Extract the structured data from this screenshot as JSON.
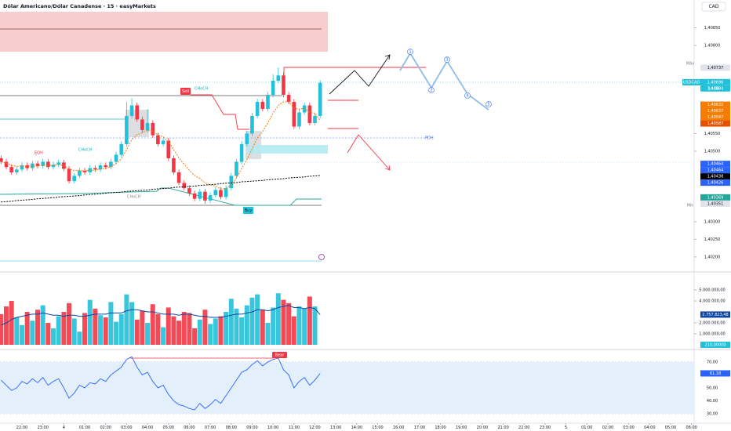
{
  "chart_data": [
    {
      "type": "candlestick",
      "title": "Dólar Americano/Dólar Canadense · 15 · easyMarkets",
      "currency": "CAD",
      "up_color": "#22c0d9",
      "down_color": "#f23645",
      "open": [
        1.4048,
        1.4047,
        1.40455,
        1.4044,
        1.40448,
        1.4046,
        1.40452,
        1.40465,
        1.40458,
        1.4047,
        1.40455,
        1.40462,
        1.40468,
        1.4045,
        1.40415,
        1.4043,
        1.40445,
        1.4044,
        1.40452,
        1.40448,
        1.4046,
        1.40455,
        1.4047,
        1.4049,
        1.4052,
        1.406,
        1.4063,
        1.4059,
        1.4056,
        1.4058,
        1.40545,
        1.4052,
        1.4053,
        1.4048,
        1.4044,
        1.4041,
        1.40395,
        1.4038,
        1.40365,
        1.40385,
        1.4036,
        1.40375,
        1.4039,
        1.4037,
        1.40395,
        1.4043,
        1.4047,
        1.4052,
        1.4055,
        1.406,
        1.4064,
        1.4062,
        1.4066,
        1.407,
        1.40715,
        1.4066,
        1.4064,
        1.4057,
        1.4061,
        1.4063,
        1.4058,
        1.406
      ],
      "high": [
        1.40488,
        1.40478,
        1.40463,
        1.40456,
        1.40468,
        1.40468,
        1.40473,
        1.40473,
        1.40478,
        1.40478,
        1.4047,
        1.40476,
        1.40476,
        1.40458,
        1.40438,
        1.40453,
        1.40453,
        1.4046,
        1.4046,
        1.40468,
        1.40468,
        1.40478,
        1.40498,
        1.40528,
        1.4064,
        1.4065,
        1.40638,
        1.40598,
        1.4062,
        1.40588,
        1.40553,
        1.40538,
        1.40538,
        1.40488,
        1.40448,
        1.40418,
        1.40403,
        1.40388,
        1.40393,
        1.40393,
        1.40383,
        1.40398,
        1.40398,
        1.40403,
        1.40438,
        1.40478,
        1.40528,
        1.40558,
        1.40608,
        1.40648,
        1.40648,
        1.40668,
        1.40718,
        1.40737,
        1.40723,
        1.40668,
        1.40648,
        1.40618,
        1.40638,
        1.40638,
        1.40608,
        1.40702
      ],
      "low": [
        1.40463,
        1.40448,
        1.40433,
        1.40433,
        1.40441,
        1.40445,
        1.40445,
        1.40451,
        1.40451,
        1.40448,
        1.40448,
        1.40455,
        1.40443,
        1.40408,
        1.40408,
        1.40423,
        1.40433,
        1.40433,
        1.40441,
        1.40441,
        1.40448,
        1.40448,
        1.40463,
        1.40483,
        1.40513,
        1.40593,
        1.40583,
        1.40553,
        1.40553,
        1.40538,
        1.40513,
        1.40513,
        1.40473,
        1.40433,
        1.40403,
        1.40388,
        1.40373,
        1.40358,
        1.40358,
        1.40351,
        1.40353,
        1.40368,
        1.40363,
        1.40363,
        1.40388,
        1.40423,
        1.40463,
        1.40513,
        1.40543,
        1.40593,
        1.40613,
        1.40613,
        1.40653,
        1.40693,
        1.40653,
        1.40633,
        1.40563,
        1.40563,
        1.40603,
        1.40573,
        1.40573,
        1.40593
      ],
      "close": [
        1.4047,
        1.40455,
        1.4044,
        1.40448,
        1.4046,
        1.40452,
        1.40465,
        1.40458,
        1.4047,
        1.40455,
        1.40462,
        1.40468,
        1.4045,
        1.40415,
        1.4043,
        1.40445,
        1.4044,
        1.40452,
        1.40448,
        1.4046,
        1.40455,
        1.4047,
        1.4049,
        1.4052,
        1.406,
        1.4063,
        1.4059,
        1.4056,
        1.4058,
        1.40545,
        1.4052,
        1.4053,
        1.4048,
        1.4044,
        1.4041,
        1.40395,
        1.4038,
        1.40365,
        1.40385,
        1.4036,
        1.40375,
        1.4039,
        1.4037,
        1.40395,
        1.4043,
        1.4047,
        1.4052,
        1.4055,
        1.406,
        1.4064,
        1.4062,
        1.4066,
        1.407,
        1.40715,
        1.4066,
        1.4064,
        1.4057,
        1.4061,
        1.4063,
        1.4058,
        1.406,
        1.40694
      ],
      "overlays": [
        {
          "color": "#f57c00",
          "dash": true,
          "values": [
            1.4047,
            1.40466,
            1.4046,
            1.40457,
            1.40458,
            1.40456,
            1.40458,
            1.40458,
            1.40461,
            1.40459,
            1.4046,
            1.40462,
            1.40459,
            1.4045,
            1.40445,
            1.40445,
            1.40444,
            1.40446,
            1.40446,
            1.4045,
            1.40451,
            1.40456,
            1.40465,
            1.40478,
            1.40505,
            1.40533,
            1.40547,
            1.40552,
            1.4056,
            1.40556,
            1.40546,
            1.40541,
            1.40527,
            1.40504,
            1.40481,
            1.40463,
            1.40446,
            1.40431,
            1.40423,
            1.4041,
            1.40404,
            1.40401,
            1.40393,
            1.40394,
            1.40404,
            1.40424,
            1.40451,
            1.40476,
            1.40506,
            1.40538,
            1.40556,
            1.4058,
            1.40608,
            1.4063,
            1.4064,
            1.4064,
            1.40622,
            1.40619,
            1.40622,
            1.4061,
            1.40608,
            1.40587
          ]
        },
        {
          "color": "#000000",
          "dash": true,
          "values": [
            1.40356,
            1.40357,
            1.40358,
            1.4036,
            1.40361,
            1.40362,
            1.40363,
            1.40365,
            1.40366,
            1.40367,
            1.40368,
            1.4037,
            1.40371,
            1.40372,
            1.40373,
            1.40374,
            1.40376,
            1.40377,
            1.40378,
            1.40379,
            1.40381,
            1.40382,
            1.40383,
            1.40384,
            1.40386,
            1.40387,
            1.40388,
            1.40389,
            1.4039,
            1.40392,
            1.40393,
            1.40394,
            1.40395,
            1.40397,
            1.40398,
            1.40399,
            1.404,
            1.40401,
            1.40403,
            1.40404,
            1.40405,
            1.40406,
            1.40408,
            1.40409,
            1.4041,
            1.40411,
            1.40413,
            1.40414,
            1.40415,
            1.40416,
            1.40417,
            1.40419,
            1.4042,
            1.40421,
            1.40422,
            1.40424,
            1.40425,
            1.40426,
            1.40427,
            1.40429,
            1.4043,
            1.40431
          ]
        }
      ],
      "ylim": [
        1.40173,
        1.40929
      ],
      "yticks": [
        {
          "value": 1.4085,
          "label": "1,40850"
        },
        {
          "value": 1.408,
          "label": "1,40800"
        },
        {
          "value": 1.4055,
          "label": "1,40550"
        },
        {
          "value": 1.405,
          "label": "1,40500"
        },
        {
          "value": 1.403,
          "label": "1,40300"
        },
        {
          "value": 1.4025,
          "label": "1,40250"
        },
        {
          "value": 1.402,
          "label": "1,40200"
        }
      ],
      "tags": [
        {
          "value": 1.40737,
          "label": "1,40737",
          "color": "#e0e3eb"
        },
        {
          "value": 1.40696,
          "label": "1,40696",
          "color": "#22c0d9"
        },
        {
          "value": 1.40694,
          "label": "1,40694",
          "color": "#22c0d9"
        },
        {
          "value": 1.40632,
          "label": "1,40632",
          "color": "#f57c00"
        },
        {
          "value": 1.40637,
          "label": "1,40637",
          "color": "#f57c00"
        },
        {
          "value": 1.40597,
          "label": "1,40597",
          "color": "#f57c00"
        },
        {
          "value": 1.40587,
          "label": "1,40587",
          "color": "#e65100"
        },
        {
          "value": 1.40464,
          "label": "1,40464",
          "color": "#2962ff"
        },
        {
          "value": 1.40464,
          "label": "1,40464",
          "color": "#2962ff"
        },
        {
          "value": 1.40438,
          "label": "1,40438",
          "color": "#000000"
        },
        {
          "value": 1.40426,
          "label": "1,40426",
          "color": "#2962ff"
        },
        {
          "value": 1.40369,
          "label": "1,40369",
          "color": "#26a69a"
        },
        {
          "value": 1.40351,
          "label": "1,40351",
          "color": "#e0e3eb"
        }
      ],
      "axis_labels": {
        "max": "Máx",
        "min": "Mín",
        "symbol": "USDCAD",
        "countdown": "14:08"
      },
      "annotations": [
        "Sell",
        "Buy",
        "CHoCH",
        "CHoCH",
        "CHoCH",
        "EQH",
        "PDH",
        "1",
        "2",
        "3",
        "4",
        "5"
      ]
    },
    {
      "type": "bar",
      "values": [
        2800000,
        3500000,
        4000000,
        2500000,
        1800000,
        3000000,
        2200000,
        3200000,
        3600000,
        2000000,
        1500000,
        2600000,
        3000000,
        3800000,
        2400000,
        1200000,
        2900000,
        4100000,
        3300000,
        2700000,
        2500000,
        3900000,
        2100000,
        2800000,
        4600000,
        3900000,
        2300000,
        3100000,
        2000000,
        3700000,
        2800000,
        1600000,
        3400000,
        2600000,
        2200000,
        3000000,
        2900000,
        1500000,
        2300000,
        3200000,
        1900000,
        2400000,
        2600000,
        3000000,
        4200000,
        3300000,
        2500000,
        3600000,
        4300000,
        4600000,
        3200000,
        2000000,
        3400000,
        4700000,
        4100000,
        3800000,
        2600000,
        3500000,
        3300000,
        4400000,
        3500000,
        210
      ],
      "overlays": [
        {
          "color": "#0d47a1",
          "dash": false,
          "values": [
            1800000,
            2000000,
            2300000,
            2500000,
            2600000,
            2700000,
            2800000,
            2800000,
            2900000,
            2800000,
            2700000,
            2700000,
            2600000,
            2700000,
            2700000,
            2600000,
            2600000,
            2700000,
            2800000,
            2800000,
            2800000,
            2900000,
            2900000,
            2900000,
            3100000,
            3200000,
            3200000,
            3100000,
            3000000,
            3000000,
            2900000,
            2800000,
            2800000,
            2800000,
            2700000,
            2800000,
            2800000,
            2700000,
            2600000,
            2600000,
            2500000,
            2500000,
            2500000,
            2600000,
            2700000,
            2800000,
            2800000,
            2900000,
            3000000,
            3200000,
            3200000,
            3100000,
            3200000,
            3400000,
            3500000,
            3600000,
            3400000,
            3400000,
            3300000,
            3400000,
            3300000,
            2757823.48
          ]
        }
      ],
      "ylim": [
        0,
        5290000
      ],
      "yticks": [
        {
          "value": 5000000,
          "label": "5.000.000,00"
        },
        {
          "value": 4000000,
          "label": "4.000.000,00"
        },
        {
          "value": 2000000,
          "label": "2.000.000,00"
        },
        {
          "value": 1000000,
          "label": "1.000.000,00"
        }
      ],
      "tags": [
        {
          "value": 2757823.48,
          "label": "2.757.823,48",
          "color": "#0d47a1"
        },
        {
          "value": 210,
          "label": "210,00000",
          "color": "#22c0d9"
        }
      ]
    },
    {
      "type": "line",
      "color": "#2962ff",
      "values": [
        56,
        52,
        48,
        50,
        55,
        53,
        57,
        54,
        58,
        52,
        55,
        57,
        50,
        42,
        46,
        52,
        50,
        54,
        53,
        57,
        55,
        60,
        63,
        66,
        72,
        74,
        66,
        60,
        62,
        55,
        50,
        52,
        45,
        40,
        37,
        36,
        34,
        33,
        38,
        34,
        37,
        41,
        38,
        44,
        50,
        56,
        62,
        64,
        68,
        71,
        67,
        70,
        72,
        73,
        64,
        60,
        50,
        55,
        58,
        52,
        56,
        61.18
      ],
      "ylim": [
        22.7,
        74.2
      ],
      "yticks": [
        {
          "value": 70,
          "label": "70,00"
        },
        {
          "value": 50,
          "label": "50,00"
        },
        {
          "value": 40,
          "label": "40,00"
        },
        {
          "value": 30,
          "label": "30,00"
        }
      ],
      "tags": [
        {
          "value": 61.18,
          "label": "61,18",
          "color": "#2962ff"
        }
      ],
      "annotations": [
        "Bear"
      ],
      "xlim": [
        -0.2,
        132.5
      ],
      "xticks": [
        {
          "value": 4,
          "label": "22:00"
        },
        {
          "value": 8,
          "label": "23:00"
        },
        {
          "value": 12,
          "label": "4"
        },
        {
          "value": 16,
          "label": "01:00"
        },
        {
          "value": 20,
          "label": "02:00"
        },
        {
          "value": 24,
          "label": "03:00"
        },
        {
          "value": 28,
          "label": "04:00"
        },
        {
          "value": 32,
          "label": "05:00"
        },
        {
          "value": 36,
          "label": "06:00"
        },
        {
          "value": 40,
          "label": "07:00"
        },
        {
          "value": 44,
          "label": "08:00"
        },
        {
          "value": 48,
          "label": "09:00"
        },
        {
          "value": 52,
          "label": "10:00"
        },
        {
          "value": 56,
          "label": "11:00"
        },
        {
          "value": 60,
          "label": "12:00"
        },
        {
          "value": 64,
          "label": "13:00"
        },
        {
          "value": 68,
          "label": "14:00"
        },
        {
          "value": 72,
          "label": "15:00"
        },
        {
          "value": 76,
          "label": "16:00"
        },
        {
          "value": 80,
          "label": "17:00"
        },
        {
          "value": 84,
          "label": "18:00"
        },
        {
          "value": 88,
          "label": "19:00"
        },
        {
          "value": 92,
          "label": "20:00"
        },
        {
          "value": 96,
          "label": "21:00"
        },
        {
          "value": 100,
          "label": "22:00"
        },
        {
          "value": 104,
          "label": "23:00"
        },
        {
          "value": 108,
          "label": "5"
        },
        {
          "value": 112,
          "label": "01:00"
        },
        {
          "value": 116,
          "label": "02:00"
        },
        {
          "value": 120,
          "label": "03:00"
        },
        {
          "value": 124,
          "label": "04:00"
        },
        {
          "value": 128,
          "label": "05:00"
        },
        {
          "value": 132,
          "label": "06:00"
        }
      ]
    }
  ]
}
